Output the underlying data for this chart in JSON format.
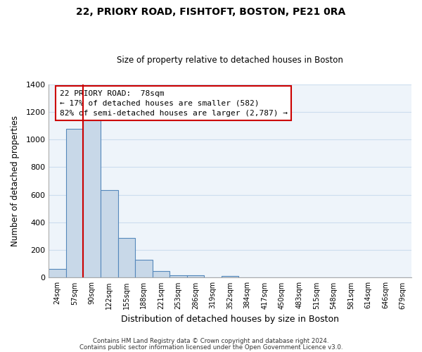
{
  "title": "22, PRIORY ROAD, FISHTOFT, BOSTON, PE21 0RA",
  "subtitle": "Size of property relative to detached houses in Boston",
  "xlabel": "Distribution of detached houses by size in Boston",
  "ylabel": "Number of detached properties",
  "bar_color": "#c8d8e8",
  "bar_edge_color": "#5588bb",
  "grid_color": "#ccddee",
  "background_color": "#eef4fa",
  "categories": [
    "24sqm",
    "57sqm",
    "90sqm",
    "122sqm",
    "155sqm",
    "188sqm",
    "221sqm",
    "253sqm",
    "286sqm",
    "319sqm",
    "352sqm",
    "384sqm",
    "417sqm",
    "450sqm",
    "483sqm",
    "515sqm",
    "548sqm",
    "581sqm",
    "614sqm",
    "646sqm",
    "679sqm"
  ],
  "values": [
    65,
    1075,
    1160,
    635,
    285,
    130,
    48,
    20,
    15,
    0,
    12,
    0,
    0,
    0,
    0,
    0,
    0,
    0,
    0,
    0,
    0
  ],
  "ylim": [
    0,
    1400
  ],
  "yticks": [
    0,
    200,
    400,
    600,
    800,
    1000,
    1200,
    1400
  ],
  "property_label": "22 PRIORY ROAD:  78sqm",
  "annotation_line1": "← 17% of detached houses are smaller (582)",
  "annotation_line2": "82% of semi-detached houses are larger (2,787) →",
  "red_line_color": "#cc0000",
  "footer1": "Contains HM Land Registry data © Crown copyright and database right 2024.",
  "footer2": "Contains public sector information licensed under the Open Government Licence v3.0."
}
